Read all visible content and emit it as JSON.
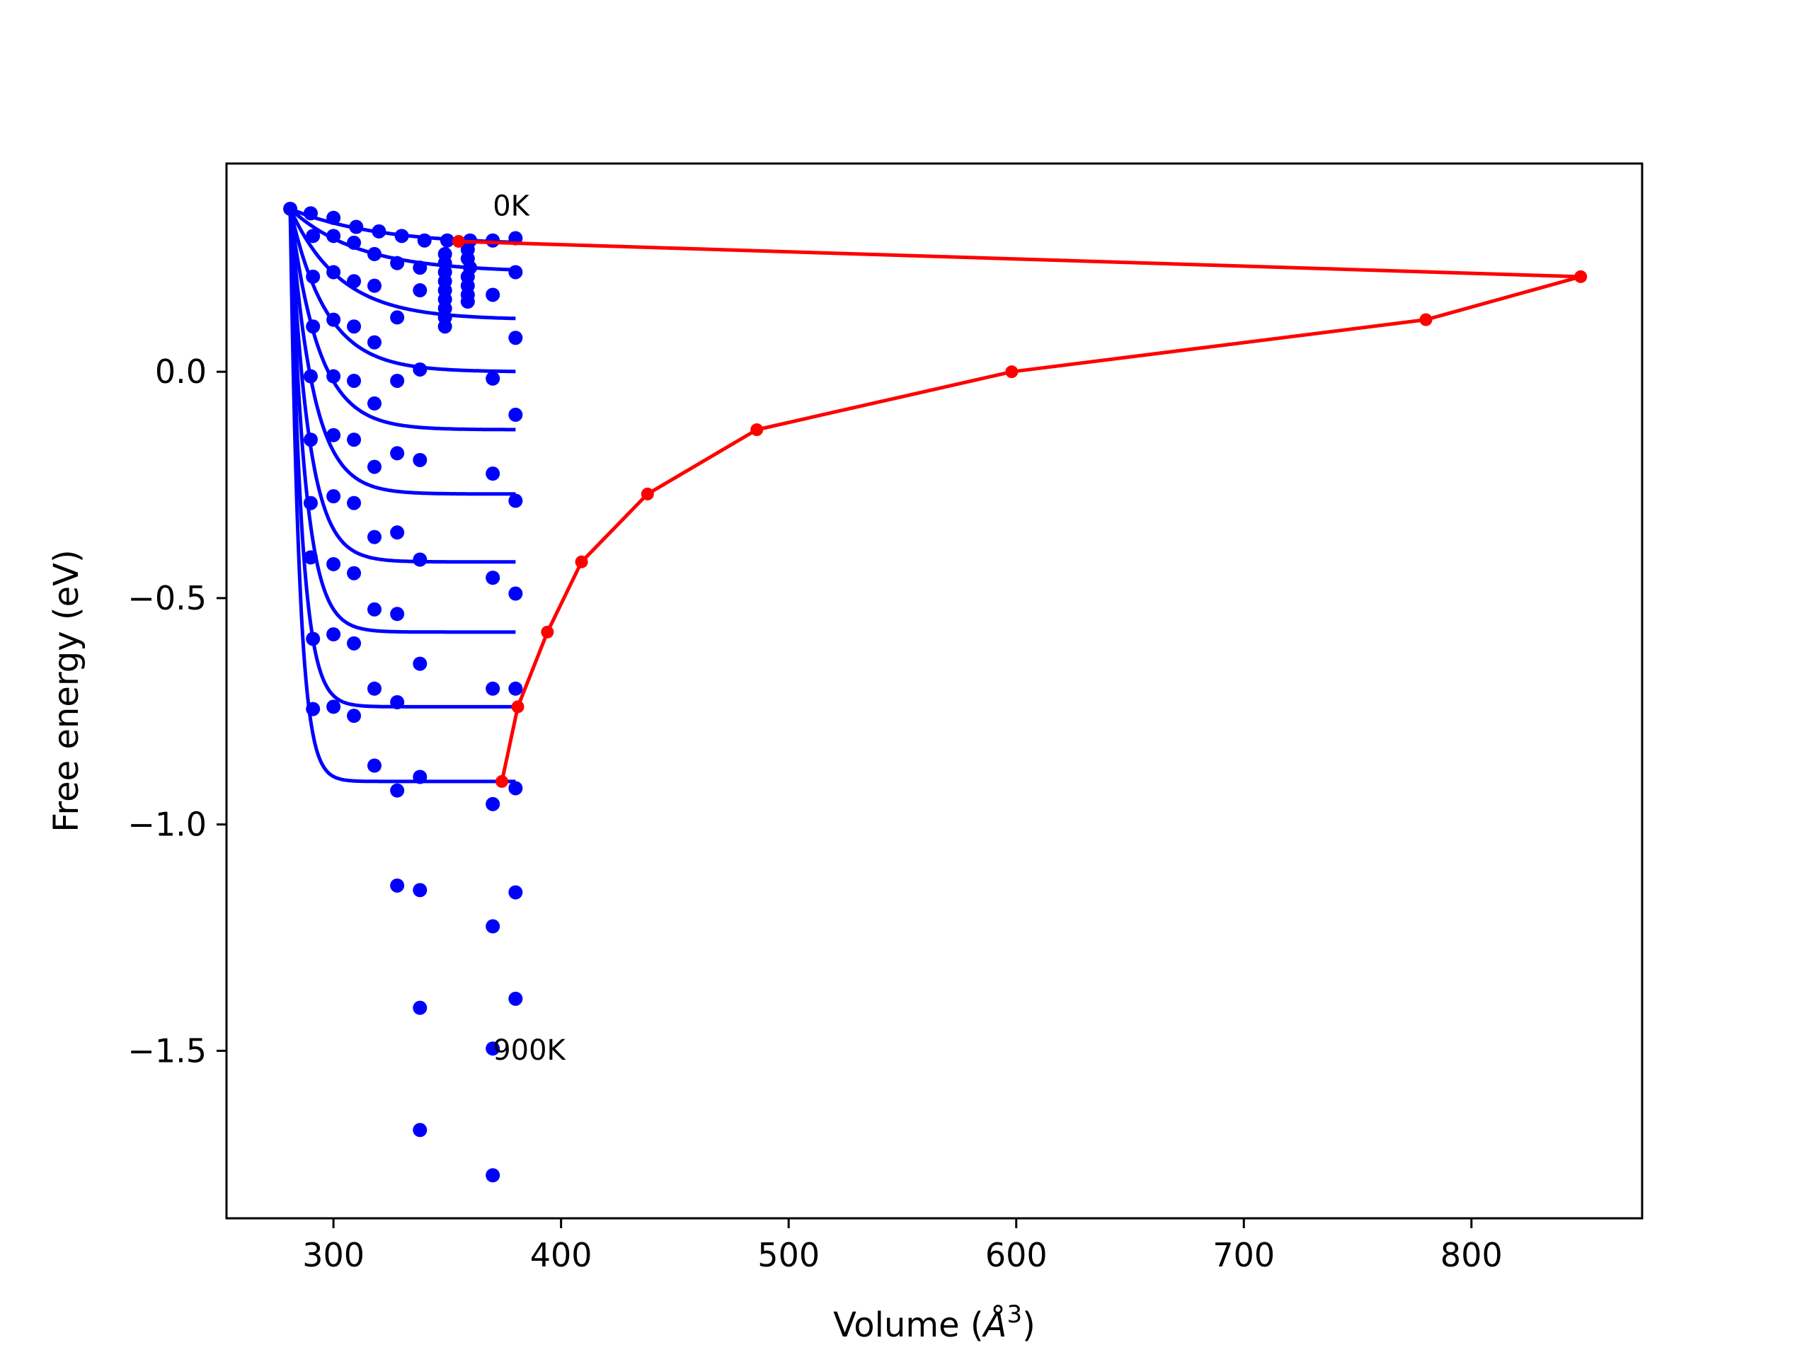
{
  "chart_data": {
    "type": "line",
    "xlabel": "Volume (Å³)",
    "xlabel_parts": {
      "main": "Volume (",
      "symbol": "Å",
      "sup": "3",
      "close": ")"
    },
    "ylabel": "Free energy (eV)",
    "xlim": [
      253,
      875
    ],
    "ylim": [
      -1.87,
      0.46
    ],
    "x_ticks": [
      300,
      400,
      500,
      600,
      700,
      800
    ],
    "x_tick_labels": [
      "300",
      "400",
      "500",
      "600",
      "700",
      "800"
    ],
    "y_ticks": [
      0.0,
      -0.5,
      -1.0,
      -1.5
    ],
    "y_tick_labels": [
      "0.0",
      "−0.5",
      "−1.0",
      "−1.5"
    ],
    "grid": false,
    "annotations": [
      {
        "text": "0K",
        "x": 370,
        "y": 0.345
      },
      {
        "text": "900K",
        "x": 370,
        "y": -1.52
      }
    ],
    "colors": {
      "fit_curves": "#0000ff",
      "data_points": "#0000ff",
      "minimum_path": "#ff0000"
    },
    "fit_curves": {
      "x_start": 281,
      "y_start": 0.36,
      "x_end": 380,
      "asymptotes": [
        0.28,
        0.22,
        0.115,
        0.0,
        -0.128,
        -0.27,
        -0.42,
        -0.575,
        -0.74,
        -0.905
      ],
      "decay_lengths": [
        38,
        30,
        22,
        16,
        12.5,
        10,
        8,
        6.5,
        5,
        4
      ]
    },
    "scatter_points": [
      [
        281,
        0.36
      ],
      [
        290,
        0.35
      ],
      [
        300,
        0.34
      ],
      [
        310,
        0.32
      ],
      [
        320,
        0.31
      ],
      [
        330,
        0.3
      ],
      [
        340,
        0.29
      ],
      [
        350,
        0.29
      ],
      [
        360,
        0.29
      ],
      [
        370,
        0.29
      ],
      [
        380,
        0.295
      ],
      [
        291,
        0.3
      ],
      [
        300,
        0.3
      ],
      [
        309,
        0.285
      ],
      [
        318,
        0.26
      ],
      [
        328,
        0.24
      ],
      [
        338,
        0.23
      ],
      [
        349,
        0.2
      ],
      [
        360,
        0.23
      ],
      [
        370,
        0.17
      ],
      [
        380,
        0.22
      ],
      [
        349,
        0.26
      ],
      [
        349,
        0.24
      ],
      [
        349,
        0.22
      ],
      [
        349,
        0.18
      ],
      [
        349,
        0.16
      ],
      [
        349,
        0.14
      ],
      [
        349,
        0.12
      ],
      [
        349,
        0.1
      ],
      [
        359,
        0.27
      ],
      [
        359,
        0.25
      ],
      [
        359,
        0.21
      ],
      [
        359,
        0.19
      ],
      [
        359,
        0.17
      ],
      [
        359,
        0.155
      ],
      [
        291,
        0.21
      ],
      [
        300,
        0.22
      ],
      [
        309,
        0.2
      ],
      [
        318,
        0.19
      ],
      [
        328,
        0.12
      ],
      [
        338,
        0.18
      ],
      [
        380,
        0.075
      ],
      [
        291,
        0.1
      ],
      [
        300,
        0.115
      ],
      [
        309,
        0.1
      ],
      [
        318,
        0.065
      ],
      [
        338,
        0.005
      ],
      [
        370,
        -0.015
      ],
      [
        380,
        -0.095
      ],
      [
        290,
        -0.01
      ],
      [
        300,
        -0.01
      ],
      [
        309,
        -0.02
      ],
      [
        318,
        -0.07
      ],
      [
        328,
        -0.02
      ],
      [
        290,
        -0.15
      ],
      [
        300,
        -0.14
      ],
      [
        309,
        -0.15
      ],
      [
        318,
        -0.21
      ],
      [
        328,
        -0.18
      ],
      [
        338,
        -0.195
      ],
      [
        370,
        -0.225
      ],
      [
        380,
        -0.285
      ],
      [
        290,
        -0.29
      ],
      [
        300,
        -0.275
      ],
      [
        309,
        -0.29
      ],
      [
        318,
        -0.365
      ],
      [
        328,
        -0.355
      ],
      [
        338,
        -0.415
      ],
      [
        370,
        -0.455
      ],
      [
        380,
        -0.49
      ],
      [
        290,
        -0.41
      ],
      [
        300,
        -0.425
      ],
      [
        309,
        -0.445
      ],
      [
        318,
        -0.525
      ],
      [
        328,
        -0.535
      ],
      [
        338,
        -0.645
      ],
      [
        370,
        -0.7
      ],
      [
        380,
        -0.7
      ],
      [
        291,
        -0.59
      ],
      [
        300,
        -0.58
      ],
      [
        309,
        -0.6
      ],
      [
        318,
        -0.7
      ],
      [
        328,
        -0.73
      ],
      [
        291,
        -0.745
      ],
      [
        300,
        -0.74
      ],
      [
        309,
        -0.76
      ],
      [
        318,
        -0.87
      ],
      [
        328,
        -0.925
      ],
      [
        338,
        -0.895
      ],
      [
        370,
        -0.955
      ],
      [
        380,
        -0.92
      ],
      [
        328,
        -1.135
      ],
      [
        338,
        -1.145
      ],
      [
        370,
        -1.225
      ],
      [
        380,
        -1.15
      ],
      [
        338,
        -1.405
      ],
      [
        370,
        -1.495
      ],
      [
        380,
        -1.385
      ],
      [
        338,
        -1.675
      ],
      [
        370,
        -1.775
      ]
    ],
    "series": [
      {
        "x": [
          374,
          381,
          394,
          409,
          438,
          486,
          598,
          780,
          848,
          355
        ],
        "y": [
          -0.905,
          -0.74,
          -0.575,
          -0.42,
          -0.27,
          -0.128,
          0.0,
          0.115,
          0.21,
          0.288
        ]
      }
    ]
  }
}
